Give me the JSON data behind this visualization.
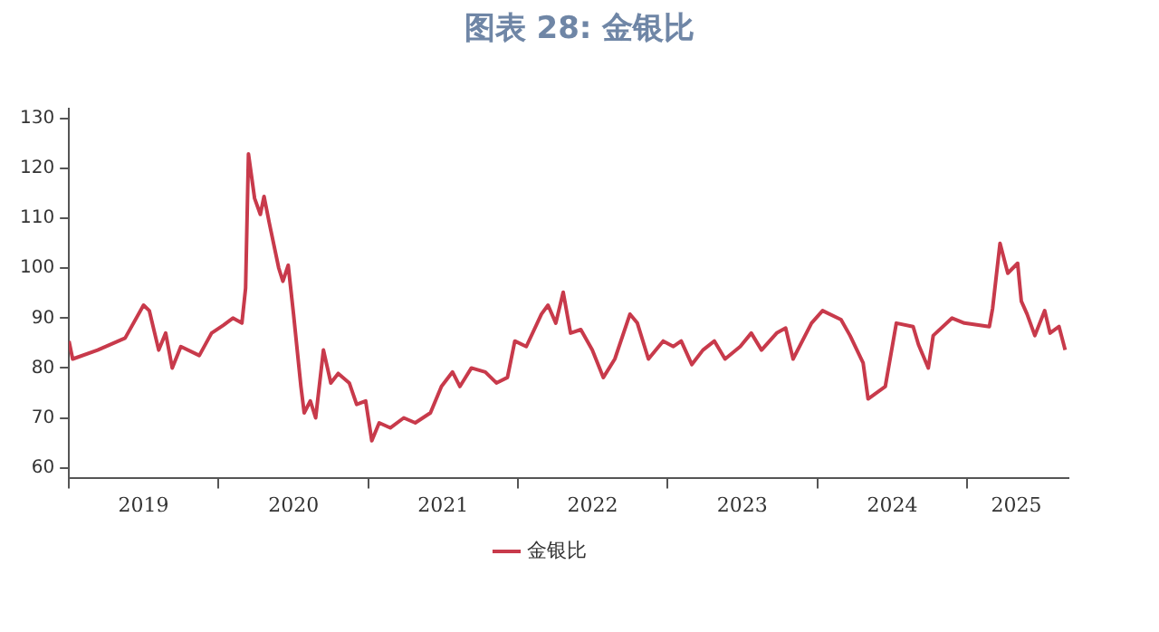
{
  "chart_data": {
    "type": "line",
    "title": "图表 28: 金银比",
    "x": [
      "2019-01-01",
      "2019-01-10",
      "2019-03-12",
      "2019-05-18",
      "2019-07-02",
      "2019-07-16",
      "2019-08-08",
      "2019-08-25",
      "2019-09-10",
      "2019-10-01",
      "2019-11-15",
      "2019-12-15",
      "2020-01-13",
      "2020-02-05",
      "2020-02-27",
      "2020-03-07",
      "2020-03-14",
      "2020-03-29",
      "2020-04-12",
      "2020-04-21",
      "2020-05-04",
      "2020-05-27",
      "2020-06-06",
      "2020-06-19",
      "2020-07-02",
      "2020-07-20",
      "2020-07-28",
      "2020-08-12",
      "2020-08-25",
      "2020-09-13",
      "2020-10-01",
      "2020-10-19",
      "2020-11-15",
      "2020-12-03",
      "2020-12-25",
      "2021-01-09",
      "2021-01-27",
      "2021-02-23",
      "2021-03-28",
      "2021-04-25",
      "2021-06-01",
      "2021-06-28",
      "2021-07-25",
      "2021-08-12",
      "2021-09-09",
      "2021-10-13",
      "2021-11-09",
      "2021-12-06",
      "2021-12-24",
      "2022-01-21",
      "2022-02-27",
      "2022-03-15",
      "2022-04-03",
      "2022-04-21",
      "2022-05-09",
      "2022-06-03",
      "2022-07-01",
      "2022-07-28",
      "2022-08-25",
      "2022-10-01",
      "2022-10-19",
      "2022-11-15",
      "2022-12-21",
      "2023-01-15",
      "2023-02-03",
      "2023-03-01",
      "2023-03-28",
      "2023-04-25",
      "2023-05-21",
      "2023-06-27",
      "2023-07-24",
      "2023-08-18",
      "2023-09-24",
      "2023-10-16",
      "2023-11-03",
      "2023-12-18",
      "2024-01-14",
      "2024-02-28",
      "2024-03-21",
      "2024-04-22",
      "2024-05-04",
      "2024-06-15",
      "2024-07-12",
      "2024-08-22",
      "2024-09-04",
      "2024-09-28",
      "2024-10-10",
      "2024-11-25",
      "2024-12-25",
      "2025-02-24",
      "2025-03-04",
      "2025-03-22",
      "2025-04-10",
      "2025-05-04",
      "2025-05-13",
      "2025-05-27",
      "2025-06-15",
      "2025-07-09",
      "2025-07-22",
      "2025-08-13",
      "2025-08-28"
    ],
    "series": [
      {
        "name": "金银比",
        "color": "#c83a4b",
        "values": [
          85.4,
          81.8,
          83.6,
          86,
          92.6,
          91.5,
          83.6,
          87,
          80,
          84.3,
          82.5,
          87,
          88.6,
          90,
          89,
          96,
          122.9,
          114,
          110.8,
          114.4,
          109,
          100,
          97.4,
          100.6,
          90.8,
          76.3,
          71,
          73.4,
          70,
          83.6,
          77,
          78.9,
          77,
          72.7,
          73.4,
          65.4,
          69,
          68,
          70,
          69,
          71,
          76.3,
          79.2,
          76.3,
          80,
          79.2,
          77,
          78.1,
          85.4,
          84.3,
          90.8,
          92.6,
          89,
          95.2,
          87,
          87.7,
          83.6,
          78.1,
          81.8,
          90.8,
          89,
          81.8,
          85.4,
          84.3,
          85.4,
          80.7,
          83.6,
          85.4,
          81.8,
          84.3,
          87,
          83.6,
          87,
          88,
          81.8,
          89,
          91.5,
          89.7,
          86.5,
          81,
          73.8,
          76.3,
          89,
          88.3,
          84.7,
          80,
          86.5,
          90,
          89,
          88.3,
          92,
          105,
          99,
          101,
          93.4,
          90.8,
          86.5,
          91.5,
          87,
          88.3,
          83.6
        ]
      }
    ],
    "xlim": [
      "2019-01-01",
      "2025-09-05"
    ],
    "xticks": [
      {
        "value": "2019-01-01",
        "label": null
      },
      {
        "value": "2019-07-02",
        "label": "2019"
      },
      {
        "value": "2020-01-01",
        "label": null
      },
      {
        "value": "2020-07-02",
        "label": "2020"
      },
      {
        "value": "2021-01-01",
        "label": null
      },
      {
        "value": "2021-07-02",
        "label": "2021"
      },
      {
        "value": "2022-01-01",
        "label": null
      },
      {
        "value": "2022-07-02",
        "label": "2022"
      },
      {
        "value": "2023-01-01",
        "label": null
      },
      {
        "value": "2023-07-02",
        "label": "2023"
      },
      {
        "value": "2024-01-01",
        "label": null
      },
      {
        "value": "2024-07-02",
        "label": "2024"
      },
      {
        "value": "2025-01-01",
        "label": null
      },
      {
        "value": "2025-05-01",
        "label": "2025"
      }
    ],
    "ylim": [
      58,
      132
    ],
    "yticks": [
      60,
      70,
      80,
      90,
      100,
      110,
      120,
      130
    ],
    "grid": false,
    "legend": "bottom",
    "marker": "none",
    "line_style": "solid"
  }
}
